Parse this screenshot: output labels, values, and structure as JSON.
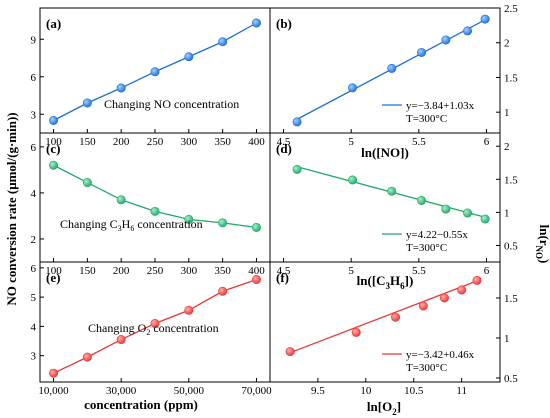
{
  "figure": {
    "ylabel_left_pre": "NO conversion rate (",
    "ylabel_left_mid": "μmol/(g·min)",
    "ylabel_left_post": ")",
    "ylabel_right_pre": "ln(r",
    "ylabel_right_sub": "NO",
    "ylabel_right_post": ")",
    "xlabel_bottom_left": "concentration (ppm)",
    "xlabel_bottom_right_pre": "ln[O",
    "xlabel_bottom_right_sub": "2",
    "xlabel_bottom_right_post": "]"
  },
  "colors": {
    "blue": "#1f6fd6",
    "green": "#1fa86b",
    "red": "#e8373a"
  },
  "chart_data": [
    {
      "id": "a",
      "type": "scatter",
      "panel_label": "(a)",
      "annotation": "Changing NO concentration",
      "x": [
        100,
        150,
        200,
        250,
        300,
        350,
        400
      ],
      "y": [
        2.5,
        3.9,
        5.1,
        6.4,
        7.6,
        8.8,
        10.3
      ],
      "xticks": [
        100,
        150,
        200,
        250,
        300,
        350,
        400
      ],
      "yticks": [
        3,
        6,
        9
      ],
      "xlim": [
        80,
        420
      ],
      "ylim": [
        1.5,
        11.5
      ],
      "color": "blue",
      "connected": true
    },
    {
      "id": "b",
      "type": "scatter",
      "panel_label": "(b)",
      "x": [
        4.6,
        5.01,
        5.3,
        5.52,
        5.7,
        5.86,
        5.99
      ],
      "y": [
        0.86,
        1.35,
        1.63,
        1.86,
        2.04,
        2.17,
        2.34
      ],
      "xticks": [
        4.5,
        5.0,
        5.5,
        6.0
      ],
      "yticks": [
        1.0,
        1.5,
        2.0,
        2.5
      ],
      "xlim": [
        4.4,
        6.1
      ],
      "ylim": [
        0.7,
        2.5
      ],
      "fit": {
        "slope": 1.03,
        "intercept": -3.84,
        "x_range": [
          4.6,
          6.0
        ]
      },
      "legend": [
        "y=−3.84+1.03x",
        "T=300°C"
      ],
      "color": "blue",
      "xlabel_pre": "ln([NO])",
      "xlabel_sub": "",
      "xlabel_post": ""
    },
    {
      "id": "c",
      "type": "scatter",
      "panel_label": "(c)",
      "annotation_pre": "Changing C",
      "annotation_sub1": "3",
      "annotation_mid": "H",
      "annotation_sub2": "6",
      "annotation_post": " concentration",
      "x": [
        100,
        150,
        200,
        250,
        300,
        350,
        400
      ],
      "y": [
        5.2,
        4.45,
        3.7,
        3.2,
        2.85,
        2.7,
        2.5
      ],
      "xticks": [
        100,
        150,
        200,
        250,
        300,
        350,
        400
      ],
      "yticks": [
        2,
        4,
        6
      ],
      "xlim": [
        80,
        420
      ],
      "ylim": [
        1.0,
        6.6
      ],
      "color": "green",
      "connected": true
    },
    {
      "id": "d",
      "type": "scatter",
      "panel_label": "(d)",
      "x": [
        4.6,
        5.01,
        5.3,
        5.52,
        5.7,
        5.86,
        5.99
      ],
      "y": [
        1.65,
        1.49,
        1.32,
        1.18,
        1.05,
        0.99,
        0.9
      ],
      "xticks": [
        4.5,
        5.0,
        5.5,
        6.0
      ],
      "yticks": [
        0.5,
        1.0,
        1.5,
        2.0
      ],
      "xlim": [
        4.4,
        6.1
      ],
      "ylim": [
        0.25,
        2.2
      ],
      "fit": {
        "slope": -0.55,
        "intercept": 4.22,
        "x_range": [
          4.6,
          6.0
        ]
      },
      "legend": [
        "y=4.22−0.55x",
        "T=300°C"
      ],
      "color": "green",
      "xlabel_pre": "ln([C",
      "xlabel_sub": "3",
      "xlabel_mid": "H",
      "xlabel_sub2": "6",
      "xlabel_post": "])"
    },
    {
      "id": "e",
      "type": "scatter",
      "panel_label": "(e)",
      "annotation_pre": "Changing O",
      "annotation_sub1": "2",
      "annotation_post": " concentration",
      "x": [
        10000,
        20000,
        30000,
        40000,
        50000,
        60000,
        70000
      ],
      "y": [
        2.4,
        2.95,
        3.55,
        4.1,
        4.55,
        5.2,
        5.6
      ],
      "xticks": [
        10000,
        30000,
        50000,
        70000
      ],
      "xtick_labels": [
        "10,000",
        "30,000",
        "50,000",
        "70,000"
      ],
      "yticks": [
        3,
        4,
        5,
        6
      ],
      "xlim": [
        6000,
        74000
      ],
      "ylim": [
        2.1,
        6.2
      ],
      "color": "red",
      "connected": true
    },
    {
      "id": "f",
      "type": "scatter",
      "panel_label": "(f)",
      "x": [
        9.21,
        9.9,
        10.31,
        10.6,
        10.82,
        11.0,
        11.16
      ],
      "y": [
        0.83,
        1.07,
        1.26,
        1.4,
        1.5,
        1.6,
        1.72
      ],
      "xticks": [
        9.5,
        10.0,
        10.5,
        11.0
      ],
      "yticks": [
        0.5,
        1.0,
        1.5
      ],
      "xlim": [
        9.0,
        11.4
      ],
      "ylim": [
        0.45,
        1.95
      ],
      "fit": {
        "slope": 0.46,
        "intercept": -3.42,
        "x_range": [
          9.21,
          11.16
        ]
      },
      "legend": [
        "y=−3.42+0.46x",
        "T=300°C"
      ],
      "color": "red"
    }
  ]
}
